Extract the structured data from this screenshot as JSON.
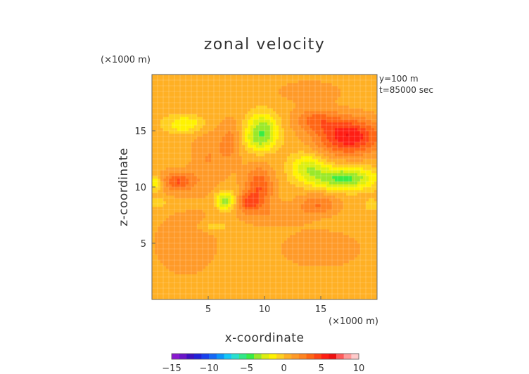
{
  "chart_data": {
    "type": "heatmap",
    "title": "zonal velocity",
    "xlabel": "x-coordinate",
    "ylabel": "z-coordinate",
    "x_unit": "(×1000 m)",
    "y_unit": "(×1000 m)",
    "annotations": [
      "y=100 m",
      "t=85000 sec"
    ],
    "xlim": [
      0,
      20
    ],
    "ylim": [
      0,
      20
    ],
    "x_ticks": [
      5,
      10,
      15
    ],
    "y_ticks": [
      5,
      10,
      15
    ],
    "x_tick_labels": [
      "5",
      "10",
      "15"
    ],
    "y_tick_labels": [
      "5",
      "10",
      "15"
    ],
    "grid": true,
    "background_value": 0.5,
    "features": [
      {
        "x": 17.5,
        "z": 14.5,
        "rx": 2.8,
        "rz": 1.6,
        "value": 5.5
      },
      {
        "x": 14.5,
        "z": 16.0,
        "rx": 2.0,
        "rz": 1.0,
        "value": 2.5
      },
      {
        "x": 17.0,
        "z": 10.8,
        "rx": 2.8,
        "rz": 1.0,
        "value": -5.0
      },
      {
        "x": 13.8,
        "z": 11.8,
        "rx": 1.5,
        "rz": 1.2,
        "value": -3.0
      },
      {
        "x": 9.8,
        "z": 15.2,
        "rx": 1.4,
        "rz": 1.4,
        "value": -4.0
      },
      {
        "x": 9.5,
        "z": 14.0,
        "rx": 1.5,
        "rz": 1.0,
        "value": -2.0
      },
      {
        "x": 3.0,
        "z": 15.6,
        "rx": 1.8,
        "rz": 0.8,
        "value": -2.5
      },
      {
        "x": 6.5,
        "z": 8.8,
        "rx": 0.9,
        "rz": 0.8,
        "value": -4.5
      },
      {
        "x": 5.5,
        "z": 6.5,
        "rx": 1.2,
        "rz": 0.5,
        "value": -1.5
      },
      {
        "x": 0.3,
        "z": 10.3,
        "rx": 0.6,
        "rz": 0.6,
        "value": -3.0
      },
      {
        "x": 0.5,
        "z": 8.6,
        "rx": 0.8,
        "rz": 0.4,
        "value": -1.5
      },
      {
        "x": 19.5,
        "z": 8.4,
        "rx": 0.6,
        "rz": 0.5,
        "value": -1.5
      },
      {
        "x": 2.3,
        "z": 10.5,
        "rx": 1.5,
        "rz": 0.9,
        "value": 3.5
      },
      {
        "x": 9.5,
        "z": 10.0,
        "rx": 1.3,
        "rz": 1.8,
        "value": 3.5
      },
      {
        "x": 8.5,
        "z": 8.6,
        "rx": 1.0,
        "rz": 0.8,
        "value": 3.0
      },
      {
        "x": 14.8,
        "z": 8.5,
        "rx": 1.8,
        "rz": 0.9,
        "value": 2.5
      },
      {
        "x": 5.0,
        "z": 12.5,
        "rx": 1.5,
        "rz": 3.0,
        "value": 1.5
      },
      {
        "x": 7.0,
        "z": 14.0,
        "rx": 1.0,
        "rz": 2.0,
        "value": 1.8
      },
      {
        "x": 3.0,
        "z": 5.0,
        "rx": 3.0,
        "rz": 3.0,
        "value": 1.2
      },
      {
        "x": 15.0,
        "z": 4.5,
        "rx": 3.5,
        "rz": 1.6,
        "value": 1.4
      },
      {
        "x": 11.0,
        "z": 7.5,
        "rx": 3.0,
        "rz": 1.0,
        "value": 1.2
      },
      {
        "x": 14.0,
        "z": 18.5,
        "rx": 3.0,
        "rz": 1.0,
        "value": 1.2
      },
      {
        "x": 10.0,
        "z": 0.8,
        "rx": 2.0,
        "rz": 1.0,
        "value": -0.5
      }
    ],
    "colorbar": {
      "min": -15,
      "max": 10,
      "ticks": [
        -15,
        -10,
        -5,
        0,
        5,
        10
      ],
      "tick_labels": [
        "−15",
        "−10",
        "−5",
        "0",
        "5",
        "10"
      ],
      "colors": [
        "#8a18d0",
        "#6a14c8",
        "#3c10c0",
        "#2020d8",
        "#1840ee",
        "#1468f6",
        "#0c94fa",
        "#14c8f8",
        "#28e0d0",
        "#30e888",
        "#38ec44",
        "#9ae828",
        "#dcee10",
        "#fff200",
        "#ffd020",
        "#ffb024",
        "#ff9a28",
        "#ff8420",
        "#ff6614",
        "#ff4414",
        "#ff1e14",
        "#ee1010",
        "#ff5a5a",
        "#ff9a9a",
        "#ffcaca"
      ]
    }
  }
}
